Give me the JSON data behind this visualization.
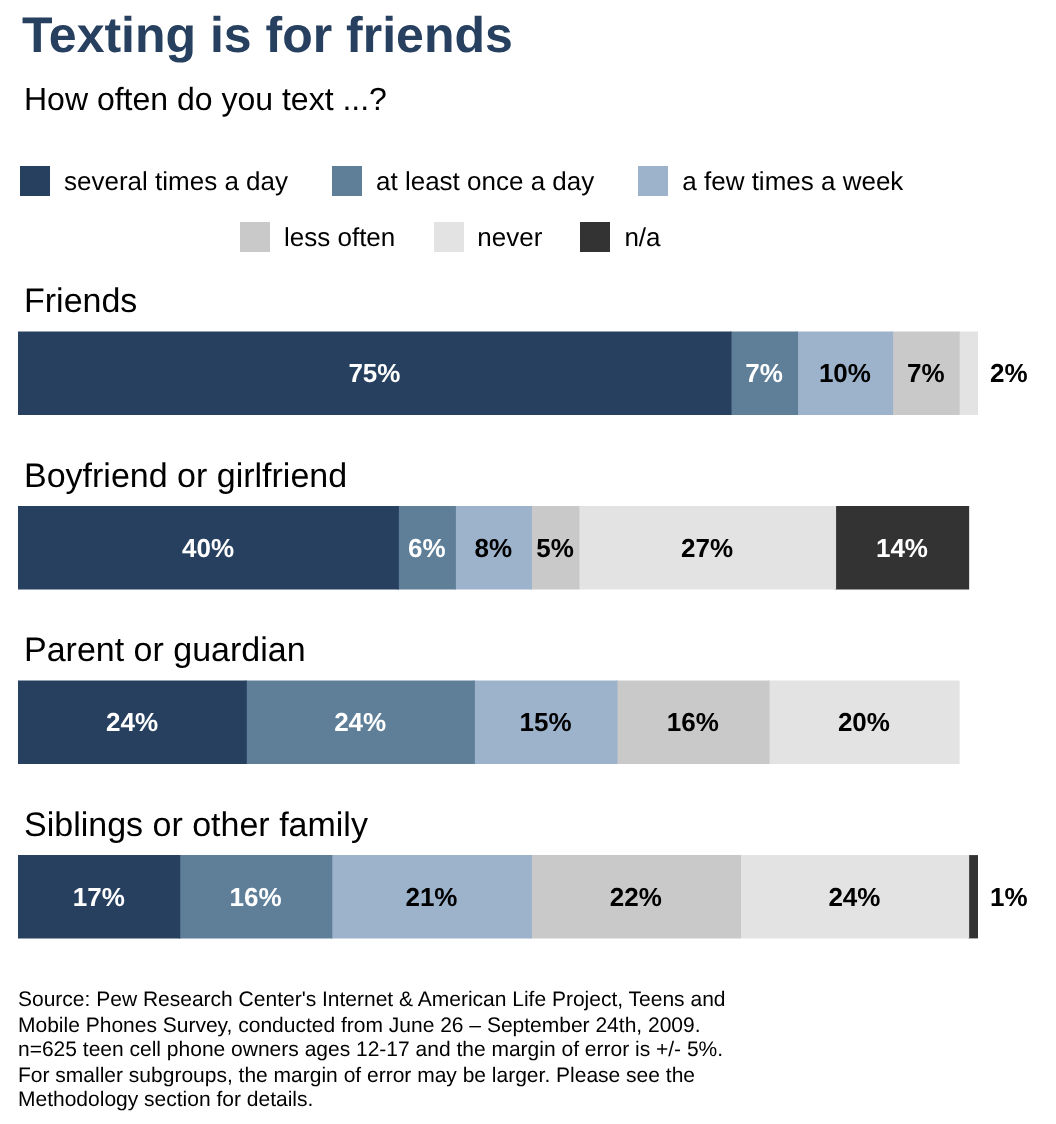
{
  "chart_data": {
    "type": "bar",
    "orientation": "horizontal",
    "stacked": true,
    "title": "Texting is for friends",
    "subtitle": "How often do you text ...?",
    "categories": [
      "Friends",
      "Boyfriend or girlfriend",
      "Parent or guardian",
      "Siblings or other family"
    ],
    "series": [
      {
        "name": "several times a day",
        "color": "#274060",
        "values": [
          75,
          40,
          24,
          17
        ],
        "value_labels": [
          "75%",
          "40%",
          "24%",
          "17%"
        ]
      },
      {
        "name": "at least once a day",
        "color": "#5f7f99",
        "values": [
          7,
          6,
          24,
          16
        ],
        "value_labels": [
          "7%",
          "6%",
          "24%",
          "16%"
        ]
      },
      {
        "name": "a few times a week",
        "color": "#9db3cc",
        "values": [
          10,
          8,
          15,
          21
        ],
        "value_labels": [
          "10%",
          "8%",
          "15%",
          "21%"
        ]
      },
      {
        "name": "less often",
        "color": "#c9c9c9",
        "values": [
          7,
          5,
          16,
          22
        ],
        "value_labels": [
          "7%",
          "5%",
          "16%",
          "22%"
        ]
      },
      {
        "name": "never",
        "color": "#e3e3e3",
        "values": [
          2,
          27,
          20,
          24
        ],
        "value_labels": [
          "2%",
          "27%",
          "20%",
          "24%"
        ]
      },
      {
        "name": "n/a",
        "color": "#333333",
        "values": [
          null,
          14,
          null,
          1
        ],
        "value_labels": [
          null,
          "14%",
          null,
          "1%"
        ]
      }
    ],
    "legend": "top",
    "tick_labels": "y",
    "annotations": [
      "Source: Pew Research Center's Internet & American Life Project, Teens and Mobile Phones Survey, conducted from June 26 – September 24th, 2009. n=625 teen cell phone owners ages 12-17 and the margin of error is +/- 5%. For smaller subgroups, the margin of error may be larger. Please see the Methodology section for details."
    ]
  }
}
